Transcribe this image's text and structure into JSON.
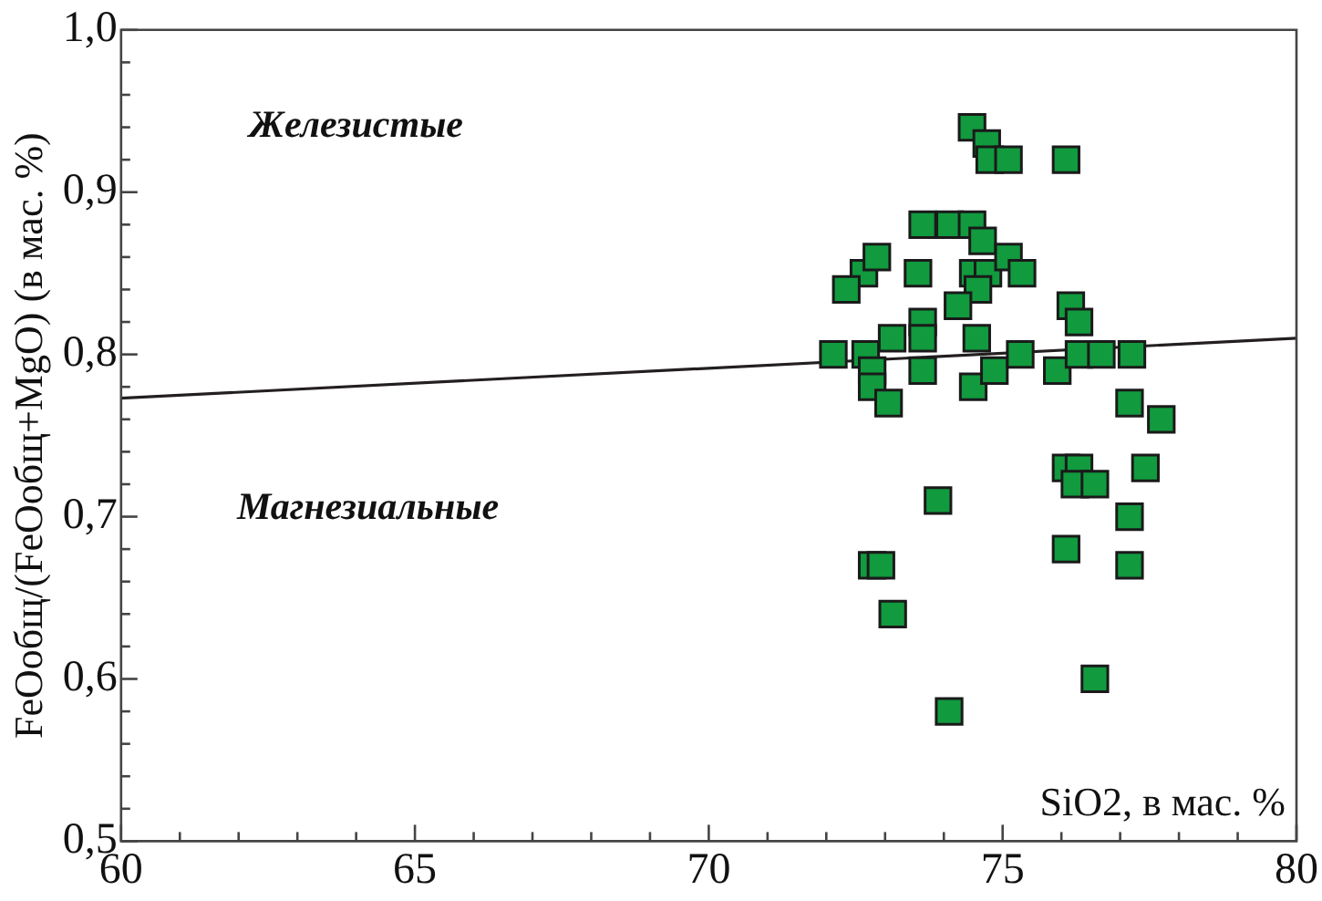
{
  "chart_data": {
    "type": "scatter",
    "xlabel": "SiO2, в мас. %",
    "ylabel": "FeOобщ/(FeOобщ+MgO) (в мас. %)",
    "xlim": [
      60,
      80
    ],
    "ylim": [
      0.5,
      1.0
    ],
    "xticks": [
      60,
      {
        "value": 61,
        "label": null
      },
      {
        "value": 62,
        "label": null
      },
      {
        "value": 63,
        "label": null
      },
      {
        "value": 64,
        "label": null
      },
      65,
      {
        "value": 66,
        "label": null
      },
      {
        "value": 67,
        "label": null
      },
      {
        "value": 68,
        "label": null
      },
      {
        "value": 69,
        "label": null
      },
      70,
      {
        "value": 71,
        "label": null
      },
      {
        "value": 72,
        "label": null
      },
      {
        "value": 73,
        "label": null
      },
      {
        "value": 74,
        "label": null
      },
      75,
      {
        "value": 76,
        "label": null
      },
      {
        "value": 77,
        "label": null
      },
      {
        "value": 78,
        "label": null
      },
      {
        "value": 79,
        "label": null
      },
      80
    ],
    "yticks": [
      {
        "value": 0.5,
        "label": "0,5"
      },
      {
        "value": 0.52,
        "label": null
      },
      {
        "value": 0.54,
        "label": null
      },
      {
        "value": 0.56,
        "label": null
      },
      {
        "value": 0.58,
        "label": null
      },
      {
        "value": 0.6,
        "label": "0,6"
      },
      {
        "value": 0.62,
        "label": null
      },
      {
        "value": 0.64,
        "label": null
      },
      {
        "value": 0.66,
        "label": null
      },
      {
        "value": 0.68,
        "label": null
      },
      {
        "value": 0.7,
        "label": "0,7"
      },
      {
        "value": 0.72,
        "label": null
      },
      {
        "value": 0.74,
        "label": null
      },
      {
        "value": 0.76,
        "label": null
      },
      {
        "value": 0.78,
        "label": null
      },
      {
        "value": 0.8,
        "label": "0,8"
      },
      {
        "value": 0.82,
        "label": null
      },
      {
        "value": 0.84,
        "label": null
      },
      {
        "value": 0.86,
        "label": null
      },
      {
        "value": 0.88,
        "label": null
      },
      {
        "value": 0.9,
        "label": "0,9"
      },
      {
        "value": 0.92,
        "label": null
      },
      {
        "value": 0.94,
        "label": null
      },
      {
        "value": 0.96,
        "label": null
      },
      {
        "value": 0.98,
        "label": null
      },
      {
        "value": 1.0,
        "label": "1,0"
      }
    ],
    "grid": false,
    "legend": false,
    "marker": "square",
    "series": [
      {
        "type": "scatter",
        "color": "#119a3e",
        "x": [
          74.48,
          74.73,
          74.78,
          75.1,
          76.08,
          73.64,
          74.1,
          74.48,
          74.66,
          72.64,
          72.34,
          72.86,
          73.56,
          74.5,
          74.75,
          74.58,
          75.1,
          75.33,
          74.24,
          76.16,
          76.3,
          72.12,
          72.67,
          73.12,
          73.64,
          73.64,
          73.64,
          72.78,
          72.78,
          73.06,
          74.56,
          74.5,
          74.86,
          75.3,
          75.93,
          76.3,
          76.68,
          77.2,
          77.16,
          77.7,
          77.43,
          76.08,
          76.3,
          76.23,
          76.57,
          77.16,
          77.16,
          76.08,
          73.9,
          72.78,
          72.93,
          73.13,
          74.09,
          76.57
        ],
        "values": [
          0.94,
          0.93,
          0.92,
          0.92,
          0.92,
          0.88,
          0.88,
          0.88,
          0.87,
          0.85,
          0.84,
          0.86,
          0.85,
          0.85,
          0.85,
          0.84,
          0.86,
          0.85,
          0.83,
          0.83,
          0.82,
          0.8,
          0.8,
          0.81,
          0.82,
          0.81,
          0.79,
          0.79,
          0.78,
          0.77,
          0.81,
          0.78,
          0.79,
          0.8,
          0.79,
          0.8,
          0.8,
          0.8,
          0.77,
          0.76,
          0.73,
          0.73,
          0.73,
          0.72,
          0.72,
          0.7,
          0.67,
          0.68,
          0.71,
          0.67,
          0.67,
          0.64,
          0.58,
          0.6
        ]
      },
      {
        "type": "line",
        "color": "#231f20",
        "marker": "none",
        "x": [
          60,
          80
        ],
        "values": [
          0.773,
          0.81
        ]
      }
    ],
    "annotations": [
      "Железистые",
      "Магнезиальные"
    ]
  }
}
